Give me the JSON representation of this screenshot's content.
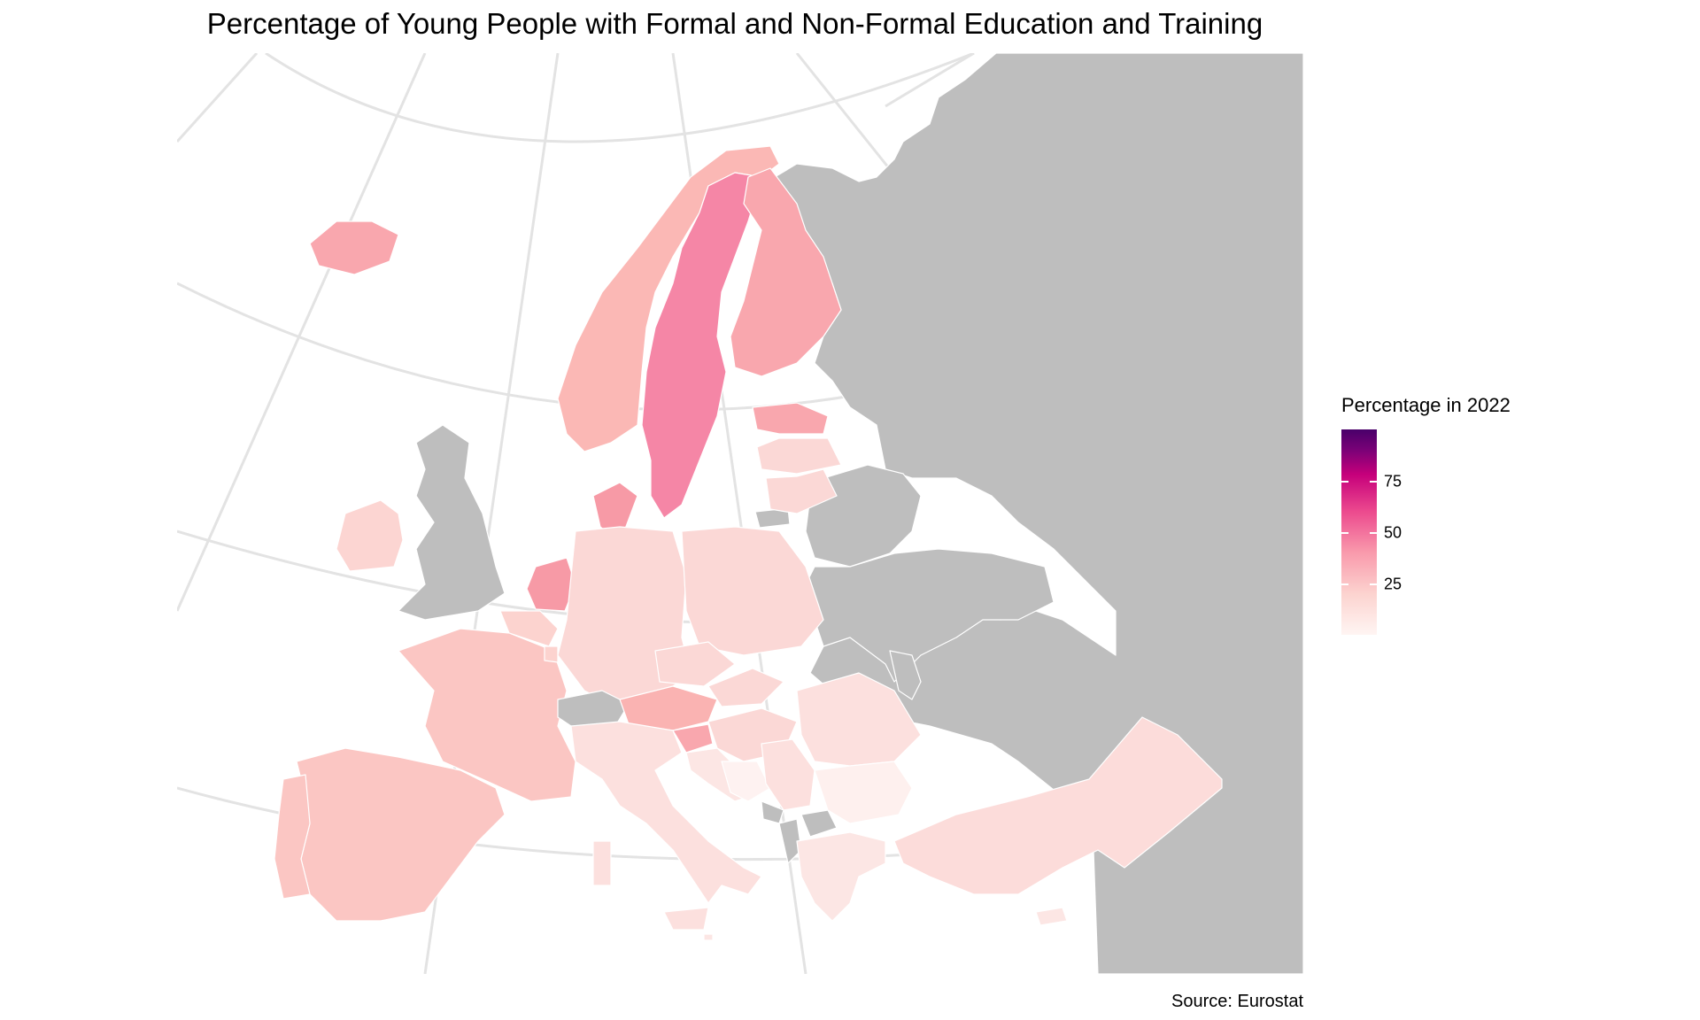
{
  "title": "Percentage of Young People with Formal and Non-Formal Education and Training",
  "caption": "Source: Eurostat",
  "legend": {
    "title": "Percentage in 2022",
    "ticks": [
      "75",
      "50",
      "25"
    ],
    "colors": {
      "low": "#fff5f3",
      "mid": "#f99aac",
      "high": "#49006a",
      "no_data": "#bebebe"
    }
  },
  "map": {
    "projection": "Lambert azimuthal (graticule shown)",
    "no_data_color": "#bebebe",
    "countries": [
      {
        "name": "Sweden",
        "value": 45
      },
      {
        "name": "Netherlands",
        "value": 38
      },
      {
        "name": "Denmark",
        "value": 36
      },
      {
        "name": "Finland",
        "value": 32
      },
      {
        "name": "Iceland",
        "value": 31
      },
      {
        "name": "Estonia",
        "value": 30
      },
      {
        "name": "Slovenia",
        "value": 30
      },
      {
        "name": "Norway",
        "value": 25
      },
      {
        "name": "Austria",
        "value": 24
      },
      {
        "name": "Spain",
        "value": 20
      },
      {
        "name": "Portugal",
        "value": 20
      },
      {
        "name": "France",
        "value": 19
      },
      {
        "name": "Belgium",
        "value": 17
      },
      {
        "name": "Luxembourg",
        "value": 17
      },
      {
        "name": "Germany",
        "value": 14
      },
      {
        "name": "Poland",
        "value": 13
      },
      {
        "name": "Czechia",
        "value": 13
      },
      {
        "name": "Slovakia",
        "value": 13
      },
      {
        "name": "Hungary",
        "value": 12
      },
      {
        "name": "Latvia",
        "value": 12
      },
      {
        "name": "Lithuania",
        "value": 12
      },
      {
        "name": "Italy",
        "value": 12
      },
      {
        "name": "Ireland",
        "value": 12
      },
      {
        "name": "Turkey",
        "value": 12
      },
      {
        "name": "Croatia",
        "value": 10
      },
      {
        "name": "Serbia",
        "value": 10
      },
      {
        "name": "Romania",
        "value": 10
      },
      {
        "name": "Greece",
        "value": 9
      },
      {
        "name": "Cyprus",
        "value": 9
      },
      {
        "name": "Malta",
        "value": 8
      },
      {
        "name": "Bulgaria",
        "value": 5
      },
      {
        "name": "Bosnia and Herzegovina",
        "value": 3
      },
      {
        "name": "United Kingdom",
        "value": null
      },
      {
        "name": "Switzerland",
        "value": null
      },
      {
        "name": "Belarus",
        "value": null
      },
      {
        "name": "Ukraine",
        "value": null
      },
      {
        "name": "Russia",
        "value": null
      },
      {
        "name": "Moldova",
        "value": null
      },
      {
        "name": "Montenegro",
        "value": null
      },
      {
        "name": "Albania",
        "value": null
      },
      {
        "name": "North Macedonia",
        "value": null
      }
    ]
  }
}
